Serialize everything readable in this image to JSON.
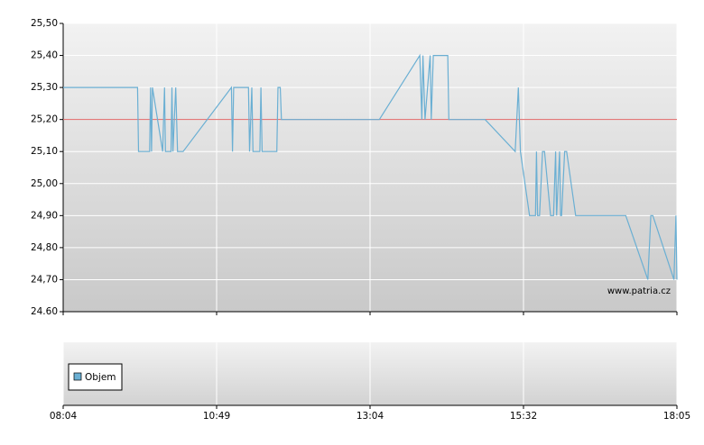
{
  "chart_data": {
    "type": "line",
    "x": [
      "08:04",
      "09:24",
      "09:25",
      "09:37",
      "09:38",
      "09:39",
      "09:40",
      "09:51",
      "09:53",
      "09:54",
      "10:00",
      "10:01",
      "10:02",
      "10:05",
      "10:07",
      "10:13",
      "11:02",
      "11:03",
      "11:04",
      "11:17",
      "11:18",
      "11:20",
      "11:21",
      "11:27",
      "11:28",
      "11:29",
      "11:42",
      "11:43",
      "11:45",
      "11:46",
      "13:13",
      "13:52",
      "13:54",
      "13:55",
      "13:57",
      "14:02",
      "14:03",
      "14:05",
      "14:19",
      "14:20",
      "14:55",
      "15:24",
      "15:27",
      "15:29",
      "15:38",
      "15:44",
      "15:45",
      "15:46",
      "15:48",
      "15:51",
      "15:53",
      "15:59",
      "16:02",
      "16:04",
      "16:05",
      "16:08",
      "16:09",
      "16:10",
      "16:13",
      "16:15",
      "16:24",
      "17:14",
      "17:36",
      "17:39",
      "17:41",
      "18:02",
      "18:04",
      "18:05"
    ],
    "series": [
      {
        "name": "Objem",
        "color": "#6aafd3",
        "values": [
          25.3,
          25.3,
          25.1,
          25.1,
          25.3,
          25.1,
          25.3,
          25.1,
          25.3,
          25.1,
          25.1,
          25.3,
          25.1,
          25.3,
          25.1,
          25.1,
          25.3,
          25.1,
          25.3,
          25.3,
          25.1,
          25.3,
          25.1,
          25.1,
          25.3,
          25.1,
          25.1,
          25.3,
          25.3,
          25.2,
          25.2,
          25.4,
          25.2,
          25.4,
          25.2,
          25.4,
          25.2,
          25.4,
          25.4,
          25.2,
          25.2,
          25.1,
          25.3,
          25.1,
          24.9,
          24.9,
          25.1,
          24.9,
          24.9,
          25.1,
          25.1,
          24.9,
          24.9,
          25.1,
          24.9,
          25.1,
          24.9,
          24.9,
          25.1,
          25.1,
          24.9,
          24.9,
          24.7,
          24.9,
          24.9,
          24.7,
          24.9,
          24.7
        ]
      }
    ],
    "reference_line": 25.2,
    "reference_color": "#e06666",
    "ylim": [
      24.6,
      25.5
    ],
    "yticks": [
      {
        "value": 24.6,
        "label": "24.60"
      },
      {
        "value": 24.7,
        "label": "24,70"
      },
      {
        "value": 24.8,
        "label": "24,80"
      },
      {
        "value": 24.9,
        "label": "24,90"
      },
      {
        "value": 25.0,
        "label": "25,00"
      },
      {
        "value": 25.1,
        "label": "25,10"
      },
      {
        "value": 25.2,
        "label": "25,20"
      },
      {
        "value": 25.3,
        "label": "25,30"
      },
      {
        "value": 25.4,
        "label": "25,40"
      },
      {
        "value": 25.5,
        "label": "25,50"
      }
    ],
    "xticks": [
      "08:04",
      "10:49",
      "13:04",
      "15:32",
      "18:05"
    ],
    "grid": true,
    "watermark": "www.patria.cz"
  }
}
